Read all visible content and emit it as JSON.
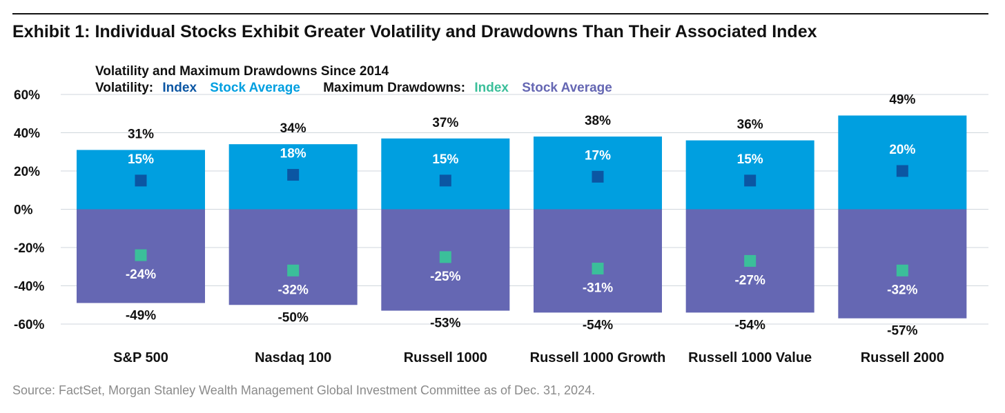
{
  "header": {
    "title": "Exhibit 1: Individual Stocks Exhibit Greater Volatility and Drawdowns Than Their Associated Index"
  },
  "footer": {
    "source": "Source: FactSet, Morgan Stanley Wealth Management Global Investment Committee as of Dec. 31, 2024."
  },
  "legend": {
    "heading": "Volatility and Maximum Drawdowns Since 2014",
    "volatility_label": "Volatility:",
    "vol_index": "Index",
    "vol_stock_avg": "Stock Average",
    "drawdown_label": "Maximum Drawdowns:",
    "dd_index": "Index",
    "dd_stock_avg": "Stock Average"
  },
  "colors": {
    "vol_bar": "#009fe0",
    "dd_bar": "#6567b3",
    "vol_index_marker": "#0b56a3",
    "dd_index_marker": "#3bbf9a",
    "grid": "#cfd6dc",
    "text": "#111111"
  },
  "chart_data": {
    "type": "bar",
    "categories": [
      "S&P 500",
      "Nasdaq 100",
      "Russell 1000",
      "Russell 1000 Growth",
      "Russell 1000 Value",
      "Russell 2000"
    ],
    "series": [
      {
        "name": "Volatility: Stock Average",
        "values": [
          31,
          34,
          37,
          38,
          36,
          49
        ],
        "labels": [
          "31%",
          "34%",
          "37%",
          "38%",
          "36%",
          "49%"
        ]
      },
      {
        "name": "Volatility: Index",
        "values": [
          15,
          18,
          15,
          17,
          15,
          20
        ],
        "labels": [
          "15%",
          "18%",
          "15%",
          "17%",
          "15%",
          "20%"
        ]
      },
      {
        "name": "Maximum Drawdowns: Stock Average",
        "values": [
          -49,
          -50,
          -53,
          -54,
          -54,
          -57
        ],
        "labels": [
          "-49%",
          "-50%",
          "-53%",
          "-54%",
          "-54%",
          "-57%"
        ]
      },
      {
        "name": "Maximum Drawdowns: Index",
        "values": [
          -24,
          -32,
          -25,
          -31,
          -27,
          -32
        ],
        "labels": [
          "-24%",
          "-32%",
          "-25%",
          "-31%",
          "-27%",
          "-32%"
        ]
      }
    ],
    "ylim": [
      -60,
      60
    ],
    "yticks": [
      60,
      40,
      20,
      0,
      -20,
      -40,
      -60
    ],
    "ytick_labels": [
      "60%",
      "40%",
      "20%",
      "0%",
      "-20%",
      "-40%",
      "-60%"
    ],
    "grid": true,
    "legend_position": "top-left"
  }
}
